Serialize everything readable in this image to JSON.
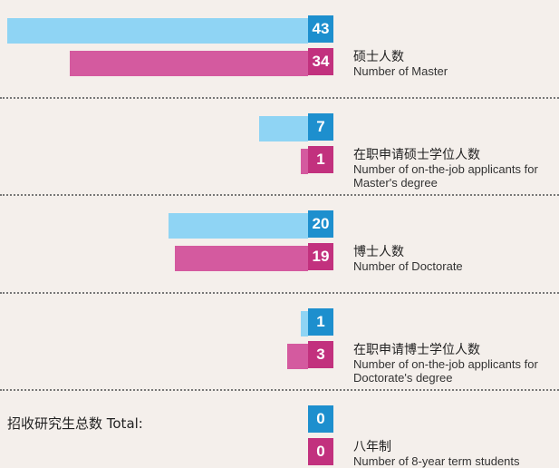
{
  "chart_data": {
    "type": "bar",
    "orientation": "horizontal",
    "categories": [
      {
        "zh": "硕士人数",
        "en": "Number of Master"
      },
      {
        "zh": "在职申请硕士学位人数",
        "en": "Number of on-the-job applicants for Master's degree"
      },
      {
        "zh": "博士人数",
        "en": "Number of Doctorate"
      },
      {
        "zh": "在职申请博士学位人数",
        "en": "Number of on-the-job applicants for Doctorate's degree"
      },
      {
        "zh": "八年制",
        "en": "Number of 8-year term students"
      }
    ],
    "series": [
      {
        "color": "#8fd4f4",
        "badge_color": "#1d8fce",
        "values": [
          43,
          7,
          20,
          1,
          0
        ]
      },
      {
        "color": "#d45a9f",
        "badge_color": "#c2317e",
        "values": [
          34,
          1,
          19,
          3,
          0
        ]
      }
    ],
    "total_label": "招收研究生总数 Total:"
  }
}
